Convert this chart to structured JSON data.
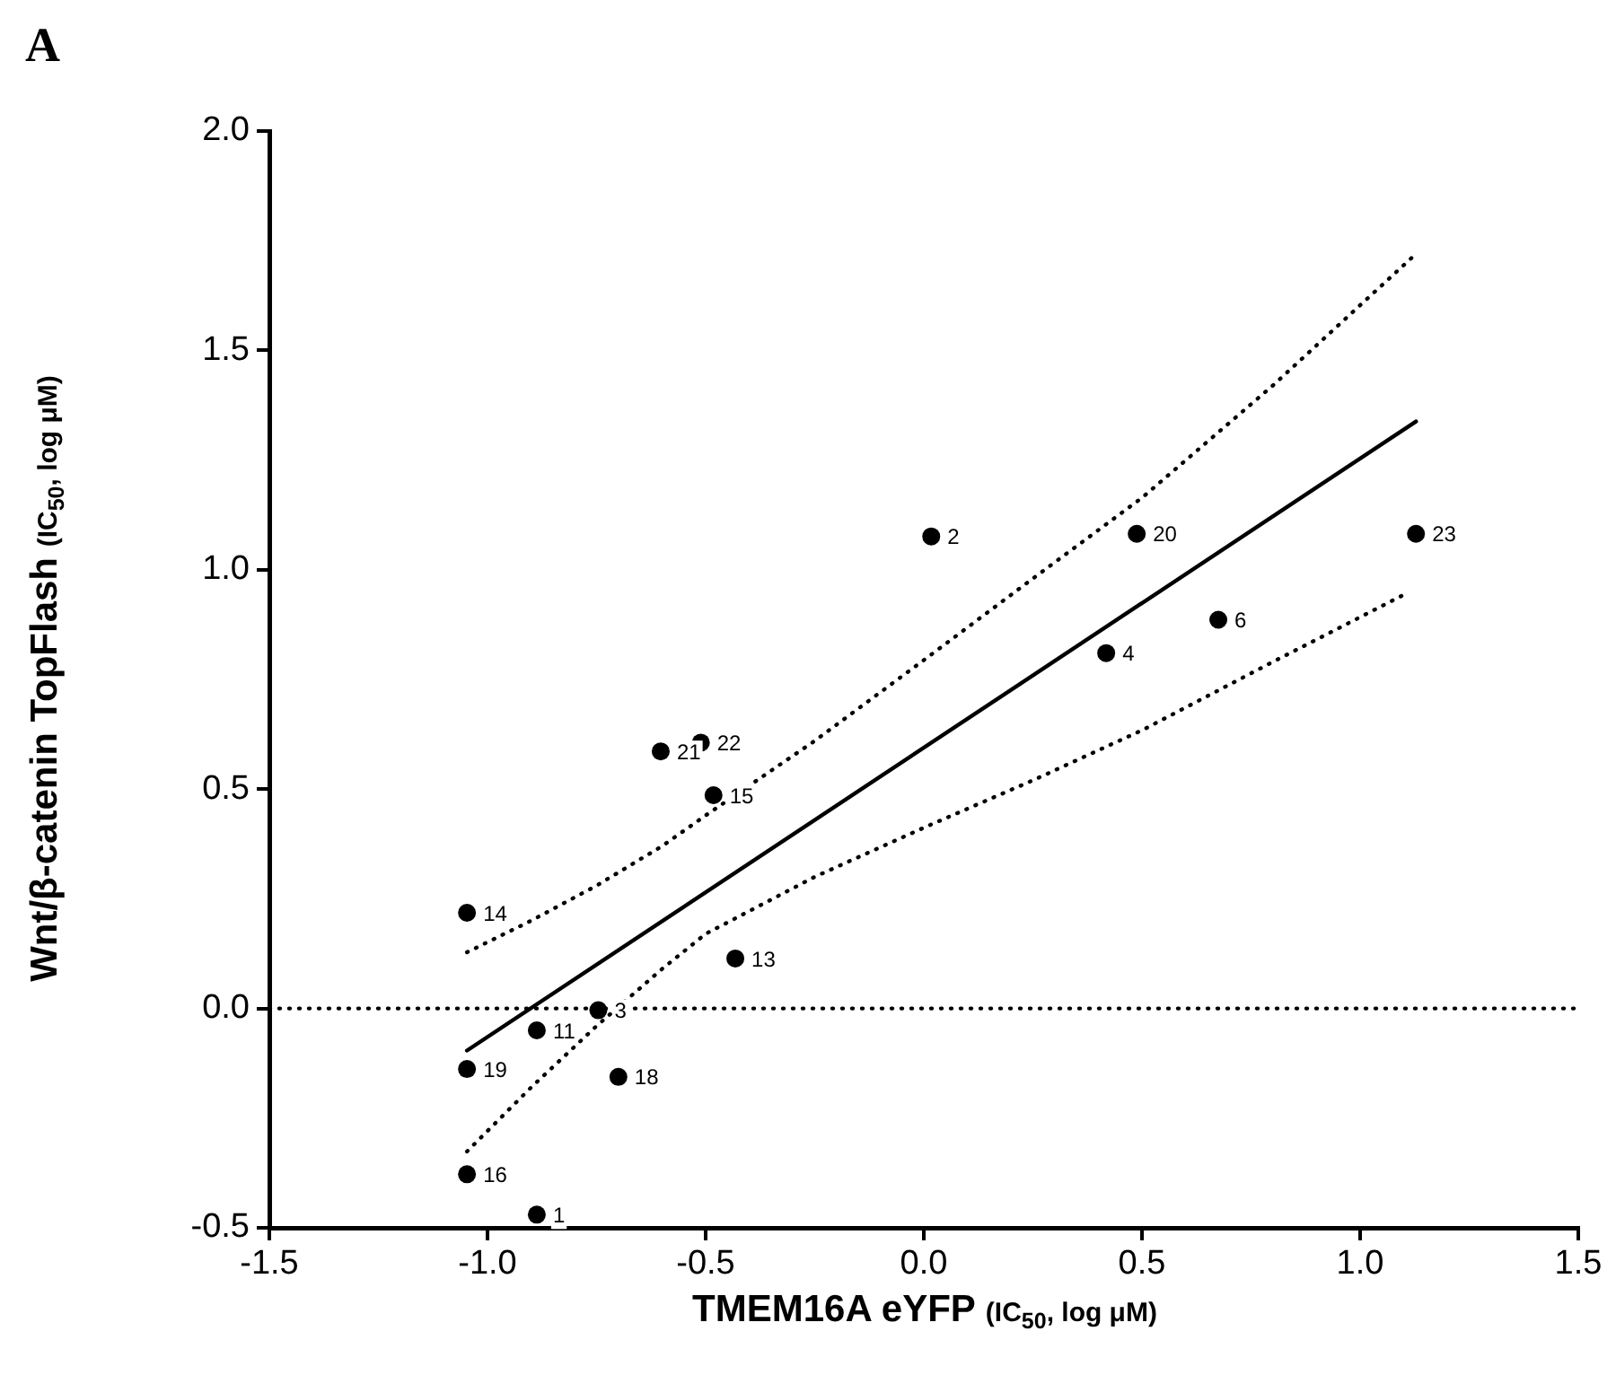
{
  "chart_data": {
    "type": "scatter",
    "xlabel": "TMEM16A eYFP (IC$_{50}$, log μM)",
    "ylabel": "Wnt/β-catenin TopFlash (IC$_{50}$, log μM)",
    "xlim": [
      -1.5,
      1.5
    ],
    "xticks": [
      {
        "value": -1.5,
        "label": "-1.5"
      },
      {
        "value": -1,
        "label": "-1.0"
      },
      {
        "value": -0.5,
        "label": "-0.5"
      },
      {
        "value": 0,
        "label": "0.0"
      },
      {
        "value": 0.5,
        "label": "0.5"
      },
      {
        "value": 1,
        "label": "1.0"
      },
      {
        "value": 1.5,
        "label": "1.5"
      }
    ],
    "ylim": [
      -0.5,
      2.0
    ],
    "yticks": [
      -0.5,
      {
        "value": 0,
        "label": "0.0"
      },
      0.5,
      {
        "value": 1,
        "label": "1.0"
      },
      1.5,
      {
        "value": 2,
        "label": "2.0"
      }
    ],
    "grid": false,
    "legend": false,
    "marker": "circle",
    "series": [
      {
        "color": "#000000",
        "x": [
          -0.887,
          0.017,
          -0.746,
          0.418,
          0.675,
          -0.887,
          -0.432,
          -1.047,
          -0.482,
          -1.047,
          -0.7,
          -1.047,
          0.488,
          -0.603,
          -0.511,
          1.128
        ],
        "values": [
          -0.47,
          1.076,
          -0.004,
          0.81,
          0.886,
          -0.05,
          0.114,
          0.218,
          0.486,
          -0.378,
          -0.156,
          -0.138,
          1.082,
          0.586,
          0.606,
          1.082
        ]
      },
      {
        "type": "line",
        "color": "#000000",
        "line_style": "solid",
        "marker": "none",
        "x": [
          -1.047,
          1.128
        ],
        "values": [
          -0.096,
          1.338
        ]
      },
      {
        "type": "line",
        "color": "#000000",
        "line_style": "dotted",
        "marker": "none",
        "x": [
          -1.047,
          -0.9,
          -0.75,
          -0.6,
          -0.5,
          -0.25,
          0,
          0.25,
          0.5,
          0.8,
          1.128
        ],
        "values": [
          0.128,
          0.2,
          0.28,
          0.37,
          0.44,
          0.61,
          0.794,
          0.98,
          1.164,
          1.42,
          1.72
        ]
      },
      {
        "type": "line",
        "color": "#000000",
        "line_style": "dotted",
        "marker": "none",
        "x": [
          -1.047,
          -0.9,
          -0.75,
          -0.6,
          -0.5,
          -0.25,
          0,
          0.25,
          0.5,
          0.8,
          1.11
        ],
        "values": [
          -0.326,
          -0.18,
          -0.04,
          0.09,
          0.17,
          0.3,
          0.412,
          0.52,
          0.634,
          0.79,
          0.948
        ]
      }
    ],
    "ref_lines": [
      {
        "axis": "y",
        "value": 0,
        "color": "#000000",
        "line_style": "dotted"
      }
    ],
    "annotations": [
      "A",
      {
        "text": "1",
        "x": -0.887,
        "y": -0.47
      },
      {
        "text": "2",
        "x": 0.017,
        "y": 1.076
      },
      {
        "text": "3",
        "x": -0.746,
        "y": -0.004
      },
      {
        "text": "4",
        "x": 0.418,
        "y": 0.81
      },
      {
        "text": "6",
        "x": 0.675,
        "y": 0.886
      },
      {
        "text": "11",
        "x": -0.887,
        "y": -0.05
      },
      {
        "text": "13",
        "x": -0.432,
        "y": 0.114
      },
      {
        "text": "14",
        "x": -1.047,
        "y": 0.218
      },
      {
        "text": "15",
        "x": -0.482,
        "y": 0.486
      },
      {
        "text": "16",
        "x": -1.047,
        "y": -0.378
      },
      {
        "text": "18",
        "x": -0.7,
        "y": -0.156
      },
      {
        "text": "19",
        "x": -1.047,
        "y": -0.138
      },
      {
        "text": "20",
        "x": 0.488,
        "y": 1.082
      },
      {
        "text": "21",
        "x": -0.603,
        "y": 0.586
      },
      {
        "text": "22",
        "x": -0.511,
        "y": 0.606
      },
      {
        "text": "23",
        "x": 1.128,
        "y": 1.082
      }
    ]
  }
}
